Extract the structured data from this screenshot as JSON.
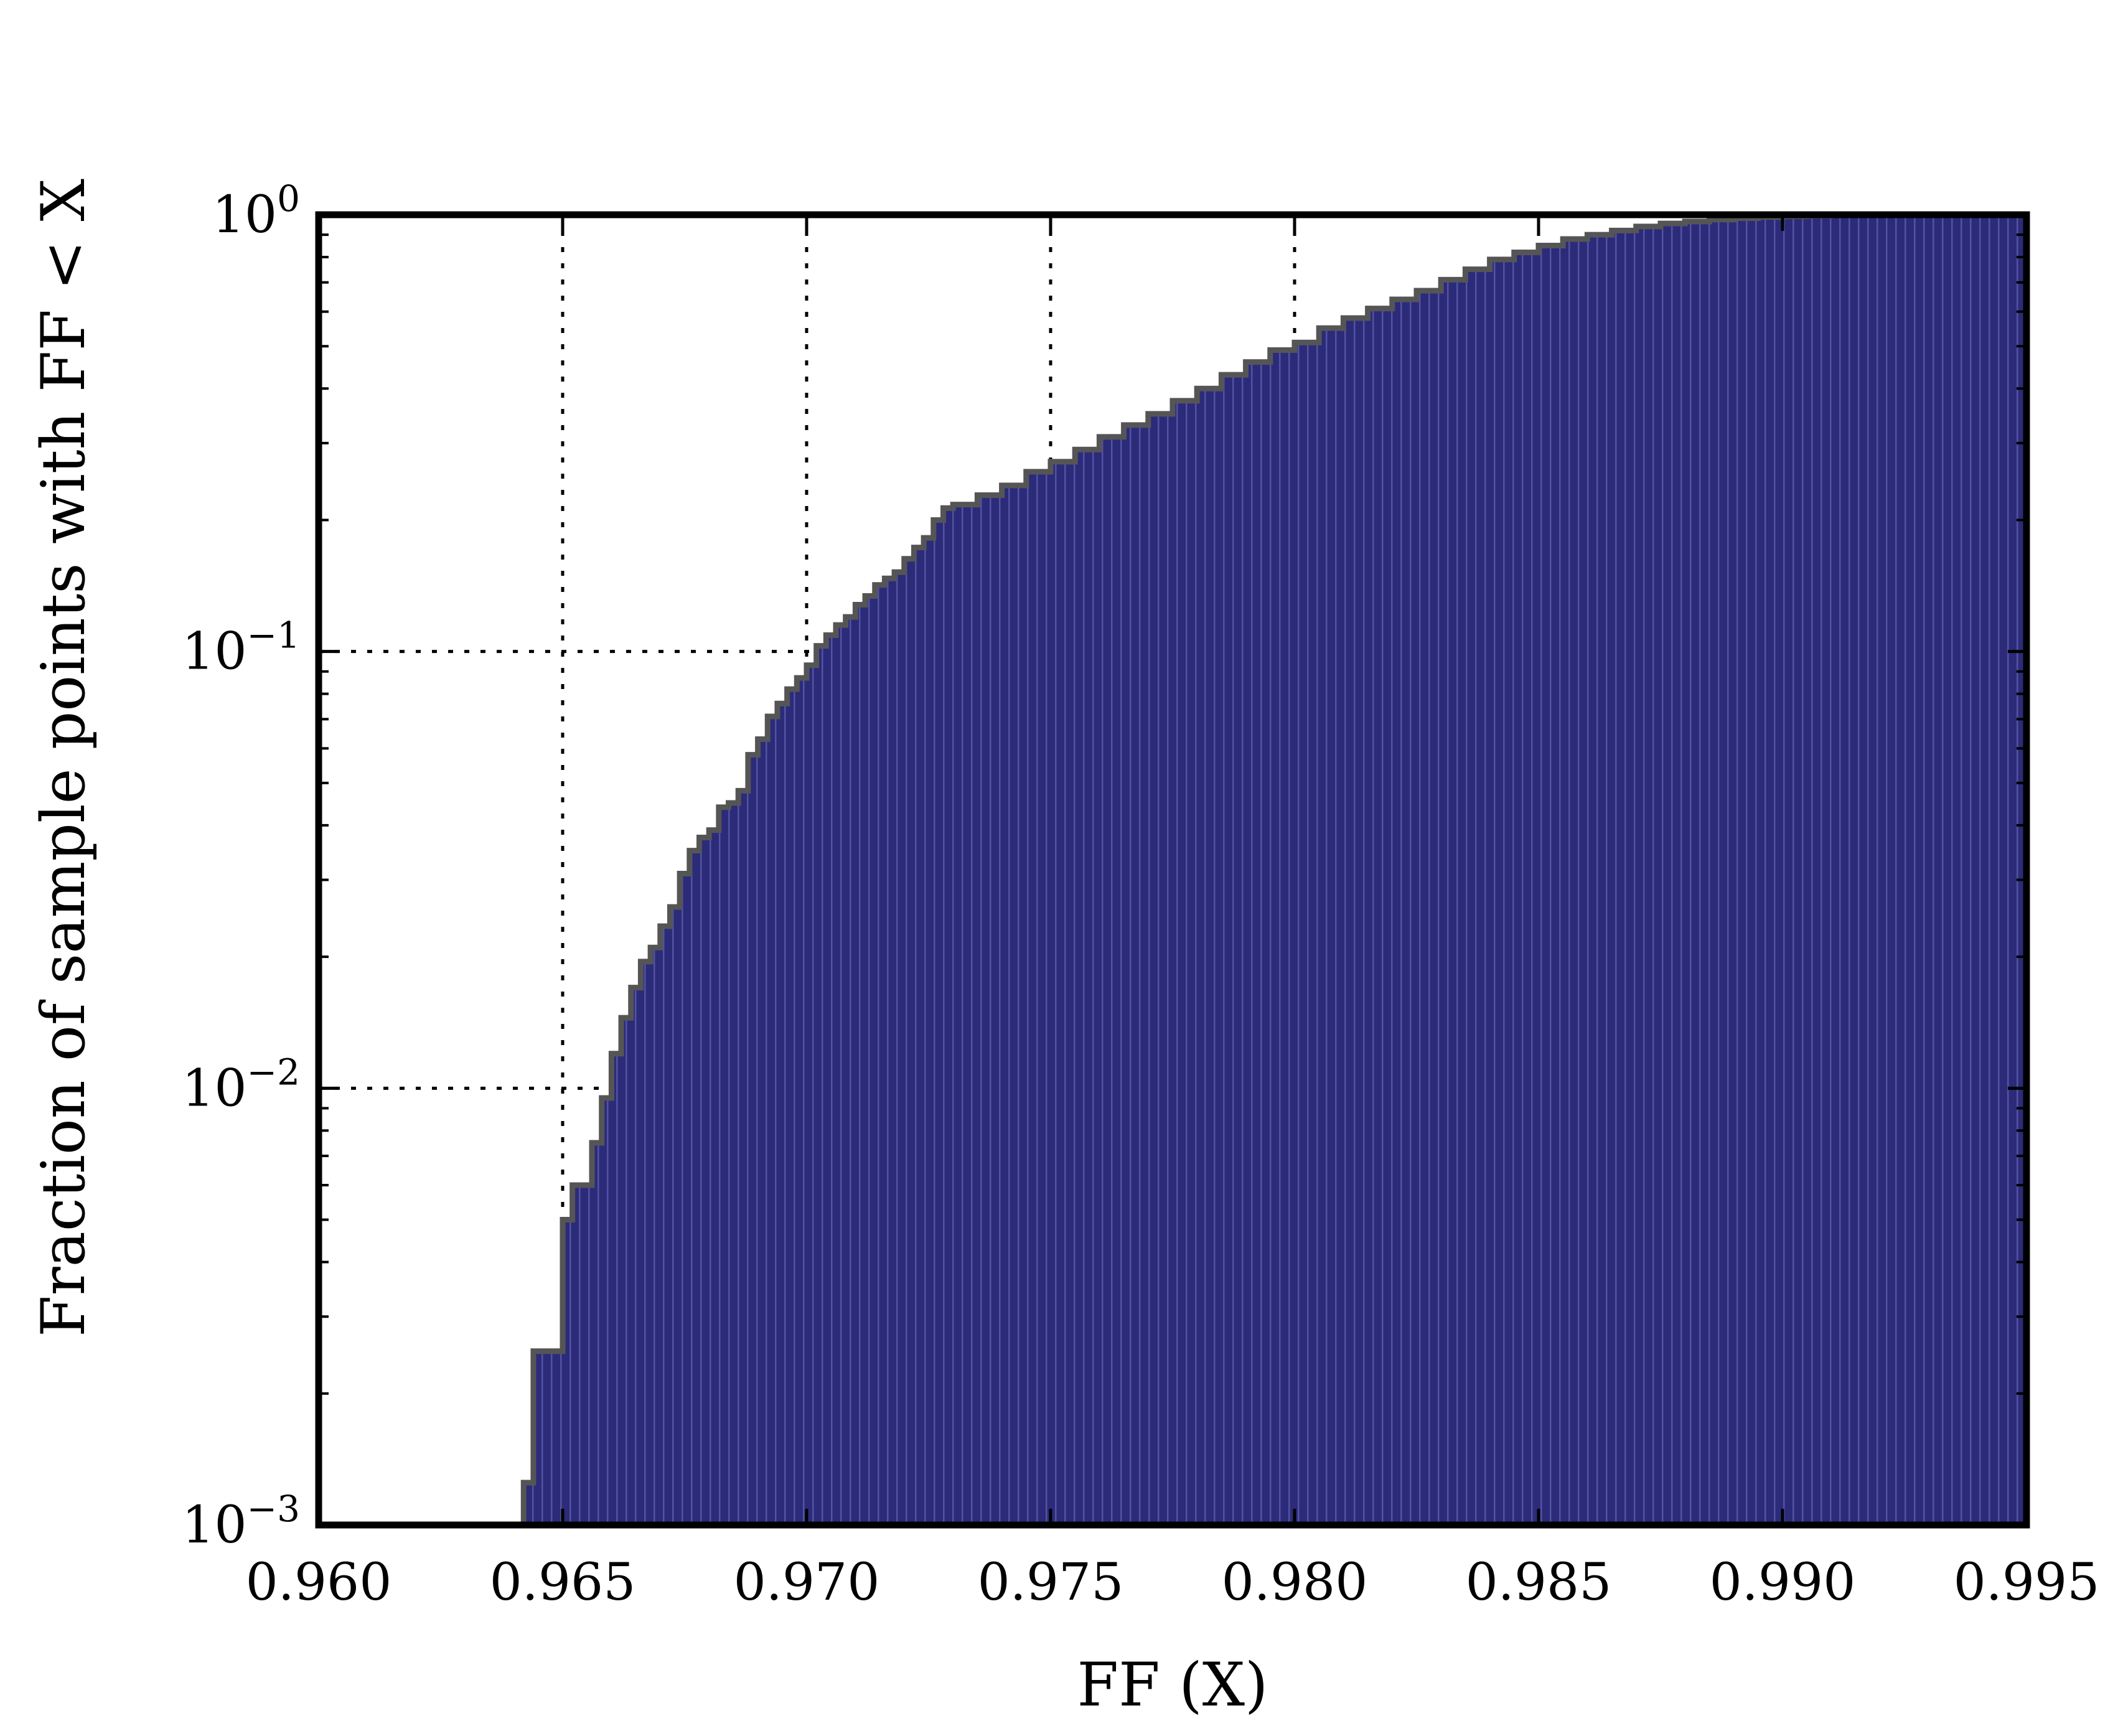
{
  "chart_data": {
    "type": "bar",
    "subtype": "cumulative-histogram",
    "title": "",
    "xlabel": "FF (X)",
    "ylabel": "Fraction of sample points with FF < X",
    "xlim": [
      0.96,
      0.995
    ],
    "ylim": [
      0.001,
      1
    ],
    "yscale": "log",
    "grid": true,
    "bar_color": "#2b2b7a",
    "edge_color": "#555555",
    "x_tick_labels": [
      "0.960",
      "0.965",
      "0.970",
      "0.975",
      "0.980",
      "0.985",
      "0.990",
      "0.995"
    ],
    "y_tick_labels": [
      {
        "base": "10",
        "exp": "−3",
        "value": 0.001
      },
      {
        "base": "10",
        "exp": "−2",
        "value": 0.01
      },
      {
        "base": "10",
        "exp": "−1",
        "value": 0.1
      },
      {
        "base": "10",
        "exp": "0",
        "value": 1
      }
    ],
    "points": [
      [
        0.9642,
        0.00125
      ],
      [
        0.9644,
        0.0025
      ],
      [
        0.965,
        0.005
      ],
      [
        0.9652,
        0.006
      ],
      [
        0.9656,
        0.0075
      ],
      [
        0.9658,
        0.0095
      ],
      [
        0.966,
        0.012
      ],
      [
        0.9662,
        0.0145
      ],
      [
        0.9664,
        0.017
      ],
      [
        0.9666,
        0.0195
      ],
      [
        0.9668,
        0.021
      ],
      [
        0.967,
        0.0235
      ],
      [
        0.9672,
        0.026
      ],
      [
        0.9674,
        0.031
      ],
      [
        0.9676,
        0.035
      ],
      [
        0.9678,
        0.0375
      ],
      [
        0.968,
        0.039
      ],
      [
        0.9682,
        0.044
      ],
      [
        0.9684,
        0.045
      ],
      [
        0.9686,
        0.048
      ],
      [
        0.9688,
        0.058
      ],
      [
        0.969,
        0.063
      ],
      [
        0.9692,
        0.071
      ],
      [
        0.9694,
        0.076
      ],
      [
        0.9696,
        0.082
      ],
      [
        0.9698,
        0.087
      ],
      [
        0.97,
        0.093
      ],
      [
        0.9702,
        0.103
      ],
      [
        0.9704,
        0.109
      ],
      [
        0.9706,
        0.115
      ],
      [
        0.9708,
        0.12
      ],
      [
        0.971,
        0.128
      ],
      [
        0.9712,
        0.134
      ],
      [
        0.9714,
        0.142
      ],
      [
        0.9716,
        0.147
      ],
      [
        0.9718,
        0.152
      ],
      [
        0.972,
        0.163
      ],
      [
        0.9722,
        0.173
      ],
      [
        0.9724,
        0.182
      ],
      [
        0.9726,
        0.2
      ],
      [
        0.9728,
        0.213
      ],
      [
        0.973,
        0.217
      ],
      [
        0.9735,
        0.228
      ],
      [
        0.974,
        0.24
      ],
      [
        0.9745,
        0.258
      ],
      [
        0.975,
        0.272
      ],
      [
        0.9755,
        0.29
      ],
      [
        0.976,
        0.31
      ],
      [
        0.9765,
        0.33
      ],
      [
        0.977,
        0.35
      ],
      [
        0.9775,
        0.375
      ],
      [
        0.978,
        0.4
      ],
      [
        0.9785,
        0.43
      ],
      [
        0.979,
        0.46
      ],
      [
        0.9795,
        0.49
      ],
      [
        0.98,
        0.51
      ],
      [
        0.9805,
        0.55
      ],
      [
        0.981,
        0.58
      ],
      [
        0.9815,
        0.61
      ],
      [
        0.982,
        0.64
      ],
      [
        0.9825,
        0.67
      ],
      [
        0.983,
        0.71
      ],
      [
        0.9835,
        0.75
      ],
      [
        0.984,
        0.79
      ],
      [
        0.9845,
        0.82
      ],
      [
        0.985,
        0.85
      ],
      [
        0.9855,
        0.88
      ],
      [
        0.986,
        0.9
      ],
      [
        0.9865,
        0.92
      ],
      [
        0.987,
        0.94
      ],
      [
        0.9875,
        0.955
      ],
      [
        0.988,
        0.965
      ],
      [
        0.9885,
        0.975
      ],
      [
        0.989,
        0.982
      ],
      [
        0.9895,
        0.988
      ],
      [
        0.99,
        0.992
      ],
      [
        0.9905,
        0.995
      ],
      [
        0.991,
        0.997
      ],
      [
        0.9915,
        0.998
      ],
      [
        0.992,
        0.999
      ],
      [
        0.993,
        1.0
      ],
      [
        0.995,
        1.0
      ]
    ]
  }
}
